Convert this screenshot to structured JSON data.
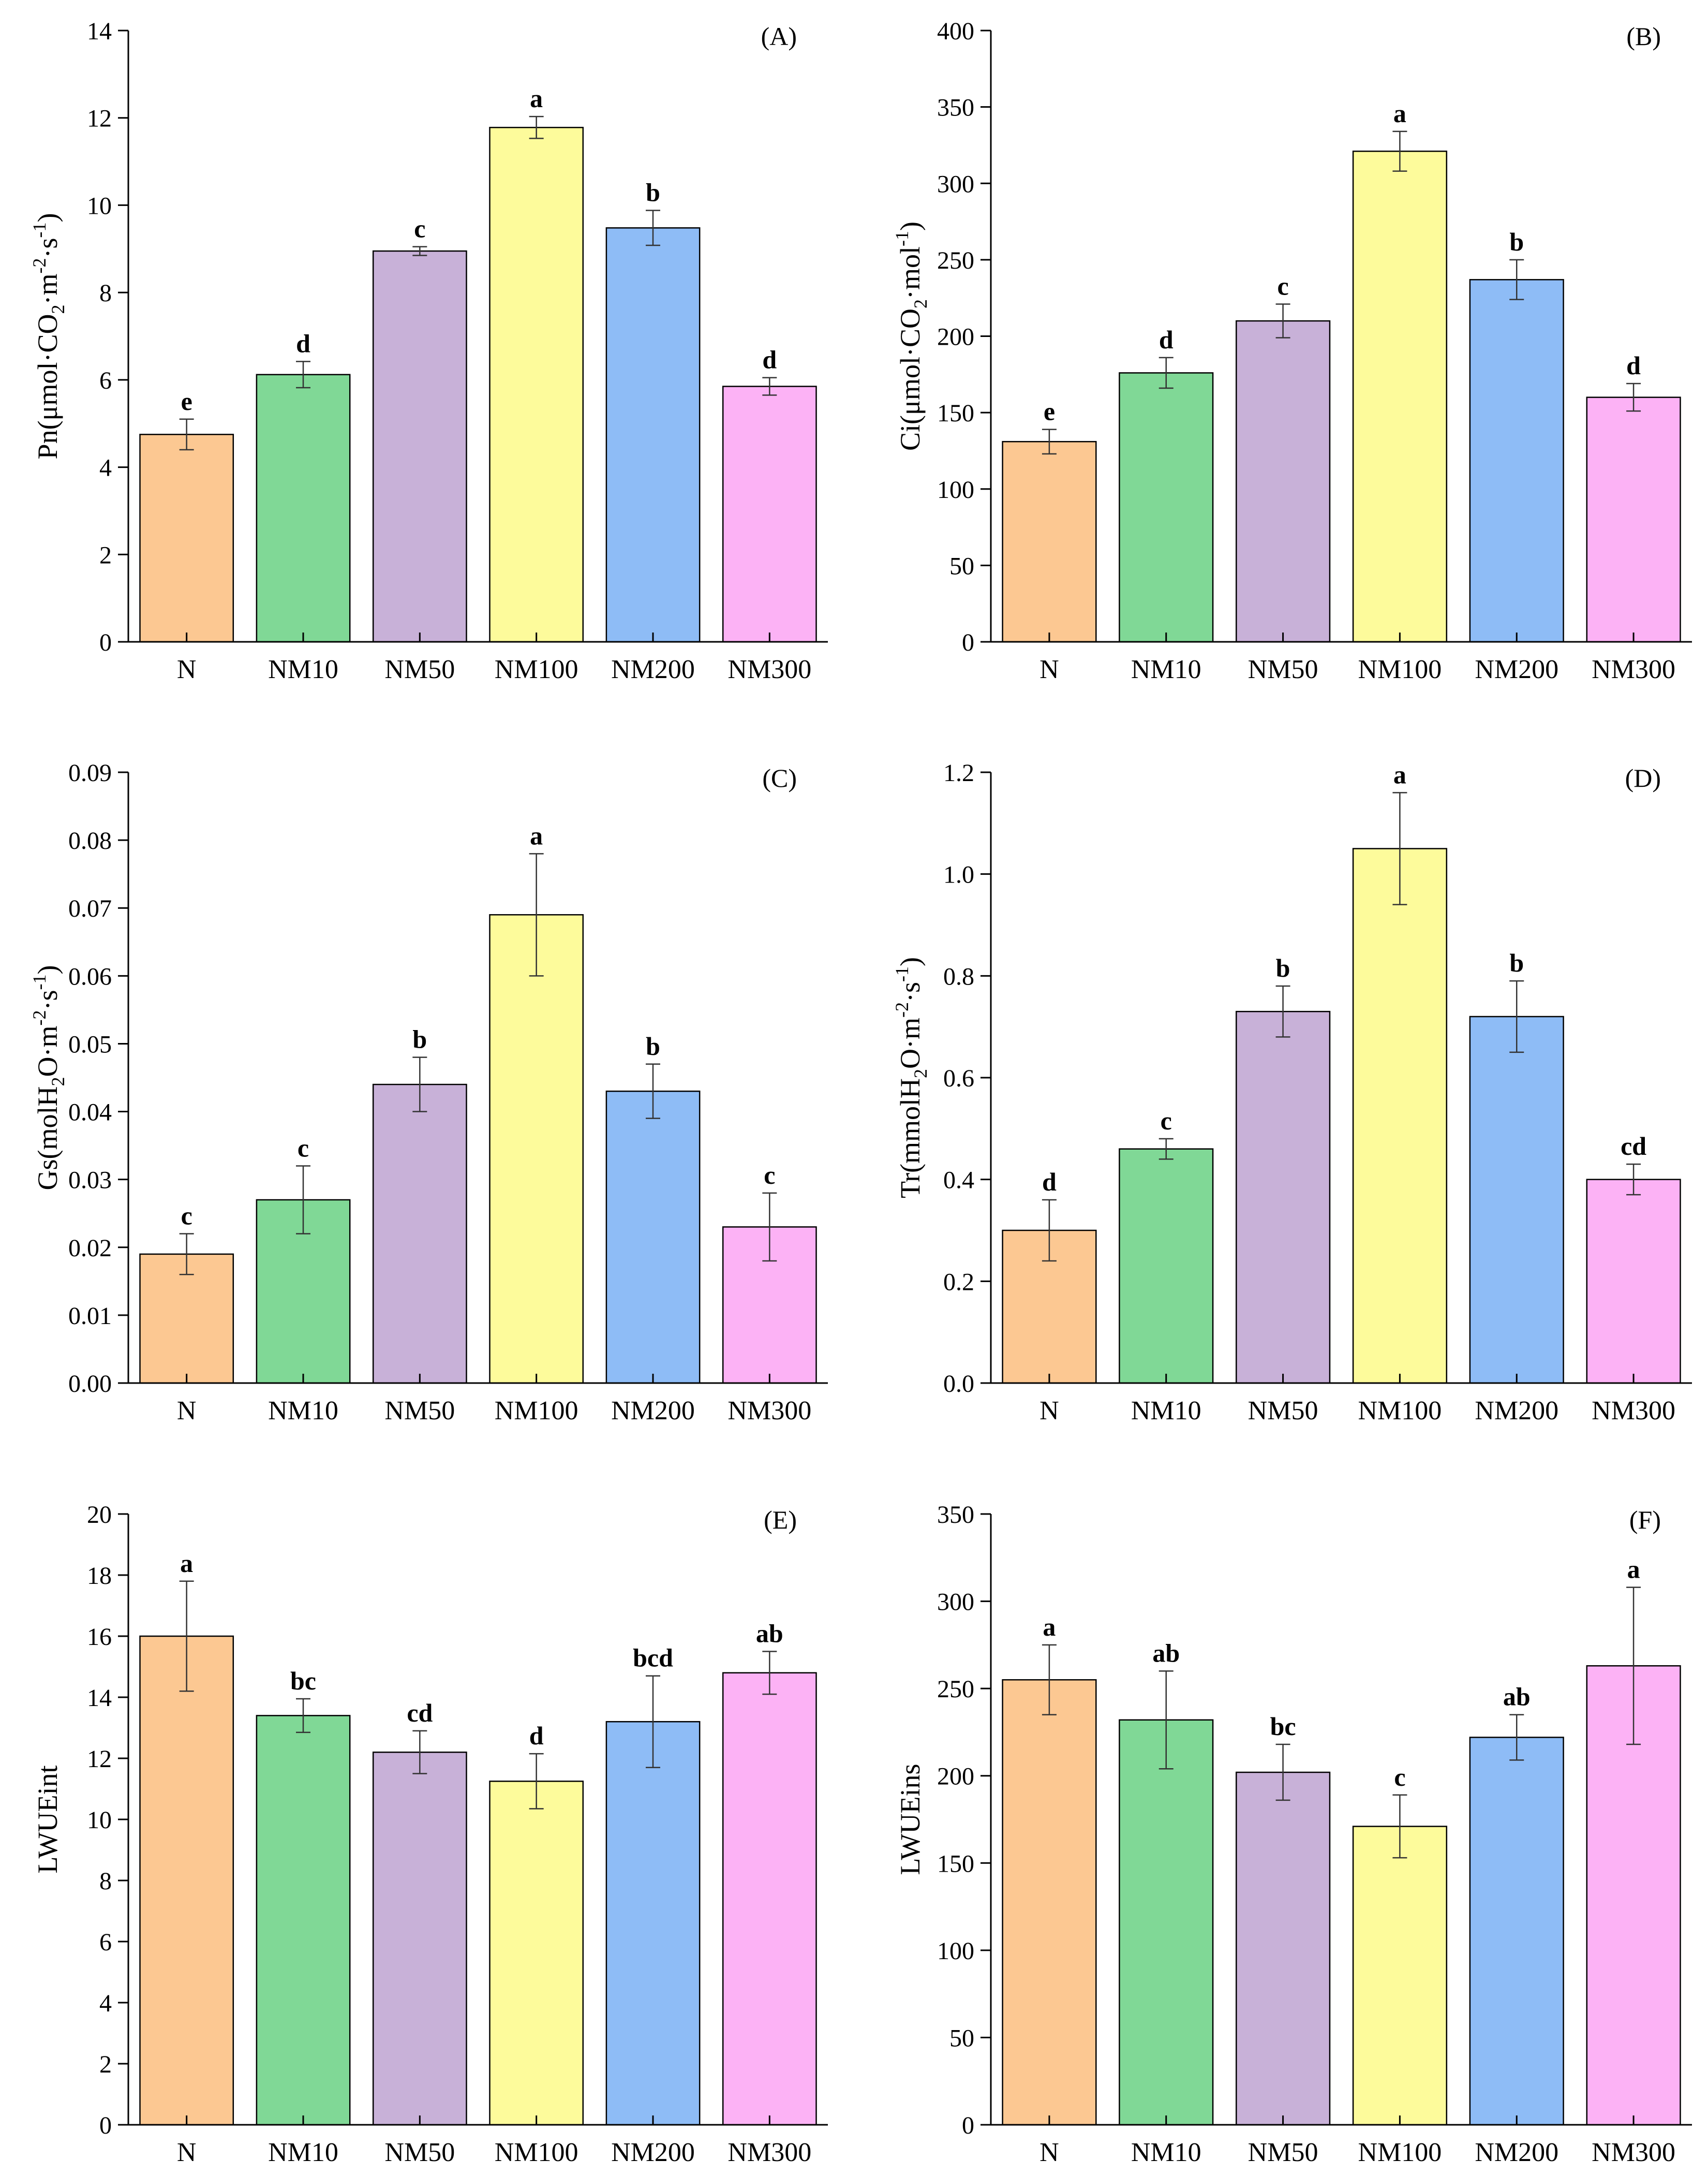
{
  "chart_data": [
    {
      "type": "bar",
      "panel": "(A)",
      "ylabel": {
        "main": "Pn(μmol·CO",
        "sub": "2",
        "mid": "·m",
        "sup1": "-2",
        "mid2": "·s",
        "sup2": "-1",
        "end": ")"
      },
      "categories": [
        "N",
        "NM10",
        "NM50",
        "NM100",
        "NM200",
        "NM300"
      ],
      "values": [
        4.75,
        6.12,
        8.95,
        11.78,
        9.48,
        5.85
      ],
      "errors": [
        0.35,
        0.3,
        0.1,
        0.25,
        0.4,
        0.2
      ],
      "significance": [
        "e",
        "d",
        "c",
        "a",
        "b",
        "d"
      ],
      "ylim": [
        0,
        14
      ],
      "yticks": [
        0,
        2,
        4,
        6,
        8,
        10,
        12,
        14
      ],
      "ytick_labels": [
        "0",
        "2",
        "4",
        "6",
        "8",
        "10",
        "12",
        "14"
      ],
      "colors": [
        "#FCC892",
        "#80D896",
        "#C8B1D8",
        "#FDFB9B",
        "#8EBCF6",
        "#FCB2F5"
      ]
    },
    {
      "type": "bar",
      "panel": "(B)",
      "ylabel": {
        "main": "Ci(μmol·CO",
        "sub": "2",
        "mid": "·mol",
        "sup1": "-1",
        "mid2": "",
        "sup2": "",
        "end": ")"
      },
      "categories": [
        "N",
        "NM10",
        "NM50",
        "NM100",
        "NM200",
        "NM300"
      ],
      "values": [
        131,
        176,
        210,
        321,
        237,
        160
      ],
      "errors": [
        8,
        10,
        11,
        13,
        13,
        9
      ],
      "significance": [
        "e",
        "d",
        "c",
        "a",
        "b",
        "d"
      ],
      "ylim": [
        0,
        400
      ],
      "yticks": [
        0,
        50,
        100,
        150,
        200,
        250,
        300,
        350,
        400
      ],
      "ytick_labels": [
        "0",
        "50",
        "100",
        "150",
        "200",
        "250",
        "300",
        "350",
        "400"
      ],
      "colors": [
        "#FCC892",
        "#80D896",
        "#C8B1D8",
        "#FDFB9B",
        "#8EBCF6",
        "#FCB2F5"
      ]
    },
    {
      "type": "bar",
      "panel": "(C)",
      "ylabel": {
        "main": "Gs(molH",
        "sub": "2",
        "mid": "O·m",
        "sup1": "-2",
        "mid2": "·s",
        "sup2": "-1",
        "end": ")"
      },
      "categories": [
        "N",
        "NM10",
        "NM50",
        "NM100",
        "NM200",
        "NM300"
      ],
      "values": [
        0.019,
        0.027,
        0.044,
        0.069,
        0.043,
        0.023
      ],
      "errors": [
        0.003,
        0.005,
        0.004,
        0.009,
        0.004,
        0.005
      ],
      "significance": [
        "c",
        "c",
        "b",
        "a",
        "b",
        "c"
      ],
      "ylim": [
        0,
        0.09
      ],
      "yticks": [
        0,
        0.01,
        0.02,
        0.03,
        0.04,
        0.05,
        0.06,
        0.07,
        0.08,
        0.09
      ],
      "ytick_labels": [
        "0.00",
        "0.01",
        "0.02",
        "0.03",
        "0.04",
        "0.05",
        "0.06",
        "0.07",
        "0.08",
        "0.09"
      ],
      "colors": [
        "#FCC892",
        "#80D896",
        "#C8B1D8",
        "#FDFB9B",
        "#8EBCF6",
        "#FCB2F5"
      ]
    },
    {
      "type": "bar",
      "panel": "(D)",
      "ylabel": {
        "main": "Tr(mmolH",
        "sub": "2",
        "mid": "O·m",
        "sup1": "-2",
        "mid2": "·s",
        "sup2": "-1",
        "end": ")"
      },
      "categories": [
        "N",
        "NM10",
        "NM50",
        "NM100",
        "NM200",
        "NM300"
      ],
      "values": [
        0.3,
        0.46,
        0.73,
        1.05,
        0.72,
        0.4
      ],
      "errors": [
        0.06,
        0.02,
        0.05,
        0.11,
        0.07,
        0.03
      ],
      "significance": [
        "d",
        "c",
        "b",
        "a",
        "b",
        "cd"
      ],
      "ylim": [
        0,
        1.2
      ],
      "yticks": [
        0,
        0.2,
        0.4,
        0.6,
        0.8,
        1.0,
        1.2
      ],
      "ytick_labels": [
        "0.0",
        "0.2",
        "0.4",
        "0.6",
        "0.8",
        "1.0",
        "1.2"
      ],
      "colors": [
        "#FCC892",
        "#80D896",
        "#C8B1D8",
        "#FDFB9B",
        "#8EBCF6",
        "#FCB2F5"
      ]
    },
    {
      "type": "bar",
      "panel": "(E)",
      "ylabel": {
        "main": "LWUEint",
        "sub": "",
        "mid": "",
        "sup1": "",
        "mid2": "",
        "sup2": "",
        "end": ""
      },
      "categories": [
        "N",
        "NM10",
        "NM50",
        "NM100",
        "NM200",
        "NM300"
      ],
      "values": [
        16.0,
        13.4,
        12.2,
        11.25,
        13.2,
        14.8
      ],
      "errors": [
        1.8,
        0.55,
        0.7,
        0.9,
        1.5,
        0.7
      ],
      "significance": [
        "a",
        "bc",
        "cd",
        "d",
        "bcd",
        "ab"
      ],
      "ylim": [
        0,
        20
      ],
      "yticks": [
        0,
        2,
        4,
        6,
        8,
        10,
        12,
        14,
        16,
        18,
        20
      ],
      "ytick_labels": [
        "0",
        "2",
        "4",
        "6",
        "8",
        "10",
        "12",
        "14",
        "16",
        "18",
        "20"
      ],
      "colors": [
        "#FCC892",
        "#80D896",
        "#C8B1D8",
        "#FDFB9B",
        "#8EBCF6",
        "#FCB2F5"
      ]
    },
    {
      "type": "bar",
      "panel": "(F)",
      "ylabel": {
        "main": "LWUEins",
        "sub": "",
        "mid": "",
        "sup1": "",
        "mid2": "",
        "sup2": "",
        "end": ""
      },
      "categories": [
        "N",
        "NM10",
        "NM50",
        "NM100",
        "NM200",
        "NM300"
      ],
      "values": [
        255,
        232,
        202,
        171,
        222,
        263
      ],
      "errors": [
        20,
        28,
        16,
        18,
        13,
        45
      ],
      "significance": [
        "a",
        "ab",
        "bc",
        "c",
        "ab",
        "a"
      ],
      "ylim": [
        0,
        350
      ],
      "yticks": [
        0,
        50,
        100,
        150,
        200,
        250,
        300,
        350
      ],
      "ytick_labels": [
        "0",
        "50",
        "100",
        "150",
        "200",
        "250",
        "300",
        "350"
      ],
      "colors": [
        "#FCC892",
        "#80D896",
        "#C8B1D8",
        "#FDFB9B",
        "#8EBCF6",
        "#FCB2F5"
      ]
    }
  ]
}
